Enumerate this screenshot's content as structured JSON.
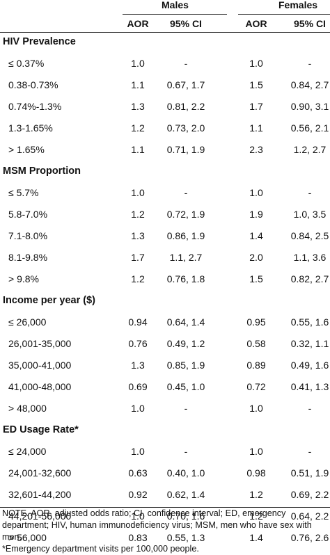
{
  "header": {
    "males": "Males",
    "females": "Females",
    "aor": "AOR",
    "ci": "95% CI"
  },
  "sections": [
    {
      "title": "HIV Prevalence",
      "rows": [
        {
          "label": "≤ 0.37%",
          "m_aor": "1.0",
          "m_ci": "-",
          "f_aor": "1.0",
          "f_ci": "-"
        },
        {
          "label": "0.38-0.73%",
          "m_aor": "1.1",
          "m_ci": "0.67, 1.7",
          "f_aor": "1.5",
          "f_ci": "0.84, 2.7"
        },
        {
          "label": "0.74%-1.3%",
          "m_aor": "1.3",
          "m_ci": "0.81, 2.2",
          "f_aor": "1.7",
          "f_ci": "0.90, 3.1"
        },
        {
          "label": "1.3-1.65%",
          "m_aor": "1.2",
          "m_ci": "0.73, 2.0",
          "f_aor": "1.1",
          "f_ci": "0.56, 2.1"
        },
        {
          "label": "> 1.65%",
          "m_aor": "1.1",
          "m_ci": "0.71, 1.9",
          "f_aor": "2.3",
          "f_ci": "1.2, 2.7"
        }
      ]
    },
    {
      "title": "MSM Proportion",
      "rows": [
        {
          "label": "≤ 5.7%",
          "m_aor": "1.0",
          "m_ci": "-",
          "f_aor": "1.0",
          "f_ci": "-"
        },
        {
          "label": "5.8-7.0%",
          "m_aor": "1.2",
          "m_ci": "0.72, 1.9",
          "f_aor": "1.9",
          "f_ci": "1.0, 3.5"
        },
        {
          "label": "7.1-8.0%",
          "m_aor": "1.3",
          "m_ci": "0.86, 1.9",
          "f_aor": "1.4",
          "f_ci": "0.84, 2.5"
        },
        {
          "label": "8.1-9.8%",
          "m_aor": "1.7",
          "m_ci": "1.1, 2.7",
          "f_aor": "2.0",
          "f_ci": "1.1, 3.6"
        },
        {
          "label": "> 9.8%",
          "m_aor": "1.2",
          "m_ci": "0.76, 1.8",
          "f_aor": "1.5",
          "f_ci": "0.82, 2.7"
        }
      ]
    },
    {
      "title": "Income per year ($)",
      "rows": [
        {
          "label": "≤ 26,000",
          "m_aor": "0.94",
          "m_ci": "0.64, 1.4",
          "f_aor": "0.95",
          "f_ci": "0.55, 1.6"
        },
        {
          "label": "26,001-35,000",
          "m_aor": "0.76",
          "m_ci": "0.49, 1.2",
          "f_aor": "0.58",
          "f_ci": "0.32, 1.1"
        },
        {
          "label": "35,000-41,000",
          "m_aor": "1.3",
          "m_ci": "0.85, 1.9",
          "f_aor": "0.89",
          "f_ci": "0.49, 1.6"
        },
        {
          "label": "41,000-48,000",
          "m_aor": "0.69",
          "m_ci": "0.45, 1.0",
          "f_aor": "0.72",
          "f_ci": "0.41, 1.3"
        },
        {
          "label": "> 48,000",
          "m_aor": "1.0",
          "m_ci": "-",
          "f_aor": "1.0",
          "f_ci": "-"
        }
      ]
    },
    {
      "title": "ED Usage Rate*",
      "rows": [
        {
          "label": "≤ 24,000",
          "m_aor": "1.0",
          "m_ci": "-",
          "f_aor": "1.0",
          "f_ci": "-"
        },
        {
          "label": "24,001-32,600",
          "m_aor": "0.63",
          "m_ci": "0.40, 1.0",
          "f_aor": "0.98",
          "f_ci": "0.51, 1.9"
        },
        {
          "label": "32,601-44,200",
          "m_aor": "0.92",
          "m_ci": "0.62, 1.4",
          "f_aor": "1.2",
          "f_ci": "0.69, 2.2"
        },
        {
          "label": "44,201-56,000",
          "m_aor": "1.0",
          "m_ci": "0.70, 1.6",
          "f_aor": "1.2",
          "f_ci": "0.64, 2.2"
        },
        {
          "label": "> 56,000",
          "m_aor": "0.83",
          "m_ci": "0.55, 1.3",
          "f_aor": "1.4",
          "f_ci": "0.76, 2.6"
        }
      ]
    }
  ],
  "notes": {
    "note": "NOTE. AOR, adjusted odds ratio; CI, confidence interval; ED, emergency department; HIV, human immunodeficiency virus; MSM, men who have sex with men.",
    "footnote": "*Emergency department visits per 100,000 people."
  }
}
